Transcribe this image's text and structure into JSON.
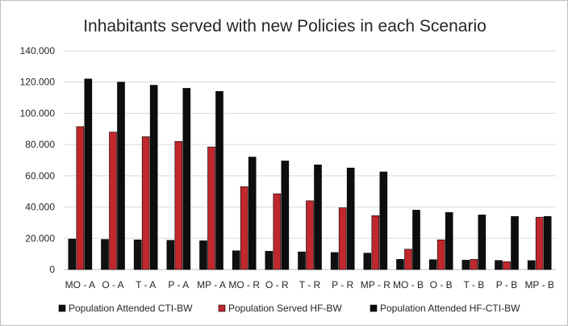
{
  "chart_data": {
    "type": "bar",
    "title": "Inhabitants served with new Policies in each Scenario",
    "xlabel": "",
    "ylabel": "",
    "ylim": [
      0,
      140000
    ],
    "yticks": [
      0,
      20000,
      40000,
      60000,
      80000,
      100000,
      120000,
      140000
    ],
    "ytick_labels": [
      "0",
      "20.000",
      "40.000",
      "60.000",
      "80.000",
      "100.000",
      "120.000",
      "140.000"
    ],
    "grid": true,
    "legend_position": "bottom",
    "categories": [
      "MO - A",
      "O - A",
      "T - A",
      "P - A",
      "MP - A",
      "MO - R",
      "O - R",
      "T - R",
      "P - R",
      "MP - R",
      "MO - B",
      "O - B",
      "T - B",
      "P - B",
      "MP - B"
    ],
    "series": [
      {
        "name": "Population Attended CTI-BW",
        "color": "#111111",
        "values": [
          19500,
          19300,
          19000,
          18700,
          18400,
          12000,
          11700,
          11300,
          10900,
          10500,
          6500,
          6300,
          6000,
          5800,
          5700
        ]
      },
      {
        "name": "Population Served HF-BW",
        "color": "#c0282d",
        "values": [
          91500,
          88000,
          85000,
          82000,
          78500,
          53000,
          48500,
          44000,
          39500,
          34500,
          13000,
          19000,
          6500,
          5000,
          33500
        ]
      },
      {
        "name": "Population Attended HF-CTI-BW",
        "color": "#0d0d0d",
        "values": [
          122000,
          120000,
          118000,
          116000,
          114000,
          72000,
          69500,
          67000,
          65000,
          62500,
          38000,
          36500,
          35000,
          34000,
          34000
        ]
      }
    ]
  }
}
